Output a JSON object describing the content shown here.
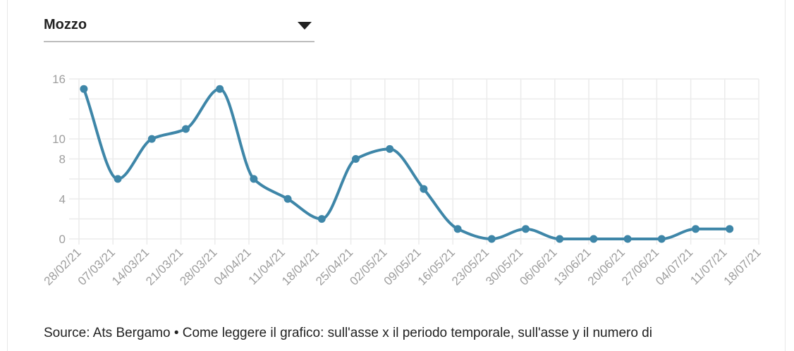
{
  "dropdown": {
    "selected": "Mozzo",
    "icon": "caret-down-icon"
  },
  "colors": {
    "line": "#3e86a8",
    "grid": "#ebebeb",
    "axis_text": "#9e9e9e",
    "text": "#222222"
  },
  "chart_data": {
    "type": "line",
    "x_tick_labels": [
      "28/02/21",
      "07/03/21",
      "14/03/21",
      "21/03/21",
      "28/03/21",
      "04/04/21",
      "11/04/21",
      "18/04/21",
      "25/04/21",
      "02/05/21",
      "09/05/21",
      "16/05/21",
      "23/05/21",
      "30/05/21",
      "06/06/21",
      "13/06/21",
      "20/06/21",
      "27/06/21",
      "04/07/21",
      "11/07/21",
      "18/07/21"
    ],
    "y_tick_labels": [
      "0",
      "4",
      "8",
      "10",
      "16"
    ],
    "y_ticks": [
      0,
      4,
      8,
      10,
      16
    ],
    "ylim": [
      0,
      16
    ],
    "xlim": [
      "2021-02-28",
      "2021-07-18"
    ],
    "grid": true,
    "series": [
      {
        "x": [
          "2021-03-01",
          "2021-03-08",
          "2021-03-15",
          "2021-03-22",
          "2021-03-29",
          "2021-04-05",
          "2021-04-12",
          "2021-04-19",
          "2021-04-26",
          "2021-05-03",
          "2021-05-10",
          "2021-05-17",
          "2021-05-24",
          "2021-05-31",
          "2021-06-07",
          "2021-06-14",
          "2021-06-21",
          "2021-06-28",
          "2021-07-05",
          "2021-07-12"
        ],
        "values": [
          15,
          6,
          10,
          11,
          15,
          6,
          4,
          2,
          8,
          9,
          5,
          1,
          0,
          1,
          0,
          0,
          0,
          0,
          1,
          1
        ]
      }
    ]
  },
  "source_text": "Source: Ats Bergamo • Come leggere il grafico: sull'asse x il periodo temporale, sull'asse y il numero di"
}
